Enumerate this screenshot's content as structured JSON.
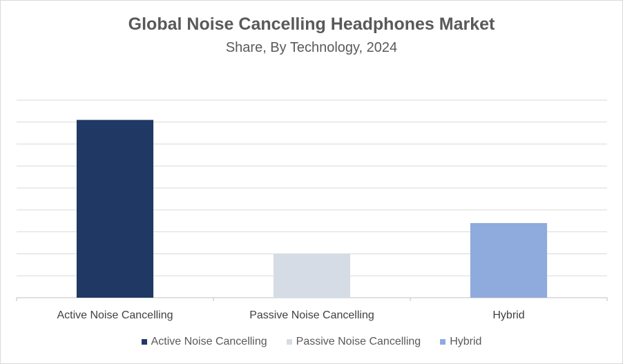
{
  "chart_data": {
    "type": "bar",
    "title": "Global Noise Cancelling Headphones Market",
    "subtitle": "Share, By Technology, 2024",
    "categories": [
      "Active Noise Cancelling",
      "Passive Noise Cancelling",
      "Hybrid"
    ],
    "values": [
      81,
      20,
      34
    ],
    "colors": [
      "#203864",
      "#d6dce5",
      "#8faadc"
    ],
    "ylim": [
      0,
      90
    ],
    "grid": true,
    "legend_position": "bottom",
    "legend": [
      "Active Noise Cancelling",
      "Passive Noise Cancelling",
      "Hybrid"
    ]
  }
}
